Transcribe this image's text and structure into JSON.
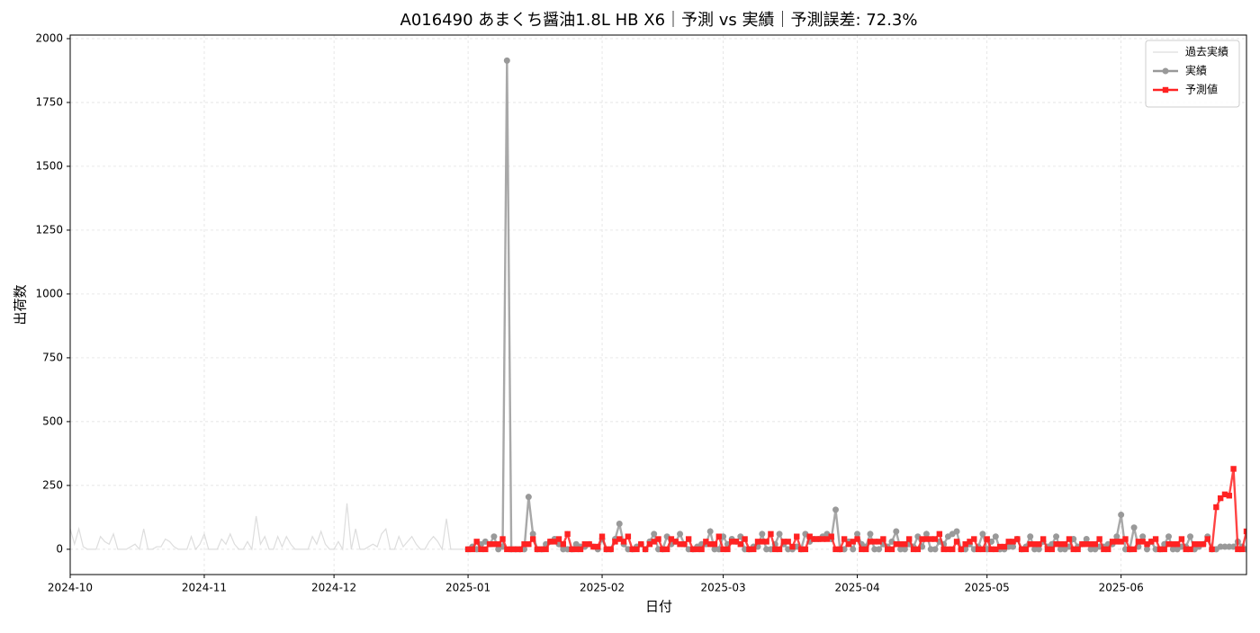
{
  "chart_data": {
    "type": "line",
    "title": "A016490 あまくち醤油1.8L HB X6｜予測 vs 実績｜予測誤差: 72.3%",
    "x_label": "日付",
    "y_label": "出荷数",
    "x": [
      "2024-10-01",
      "2024-10-02",
      "2024-10-03",
      "2024-10-04",
      "2024-10-05",
      "2024-10-06",
      "2024-10-07",
      "2024-10-08",
      "2024-10-09",
      "2024-10-10",
      "2024-10-11",
      "2024-10-12",
      "2024-10-13",
      "2024-10-14",
      "2024-10-15",
      "2024-10-16",
      "2024-10-17",
      "2024-10-18",
      "2024-10-19",
      "2024-10-20",
      "2024-10-21",
      "2024-10-22",
      "2024-10-23",
      "2024-10-24",
      "2024-10-25",
      "2024-10-26",
      "2024-10-27",
      "2024-10-28",
      "2024-10-29",
      "2024-10-30",
      "2024-10-31",
      "2024-11-01",
      "2024-11-02",
      "2024-11-03",
      "2024-11-04",
      "2024-11-05",
      "2024-11-06",
      "2024-11-07",
      "2024-11-08",
      "2024-11-09",
      "2024-11-10",
      "2024-11-11",
      "2024-11-12",
      "2024-11-13",
      "2024-11-14",
      "2024-11-15",
      "2024-11-16",
      "2024-11-17",
      "2024-11-18",
      "2024-11-19",
      "2024-11-20",
      "2024-11-21",
      "2024-11-22",
      "2024-11-23",
      "2024-11-24",
      "2024-11-25",
      "2024-11-26",
      "2024-11-27",
      "2024-11-28",
      "2024-11-29",
      "2024-11-30",
      "2024-12-01",
      "2024-12-02",
      "2024-12-03",
      "2024-12-04",
      "2024-12-05",
      "2024-12-06",
      "2024-12-07",
      "2024-12-08",
      "2024-12-09",
      "2024-12-10",
      "2024-12-11",
      "2024-12-12",
      "2024-12-13",
      "2024-12-14",
      "2024-12-15",
      "2024-12-16",
      "2024-12-17",
      "2024-12-18",
      "2024-12-19",
      "2024-12-20",
      "2024-12-21",
      "2024-12-22",
      "2024-12-23",
      "2024-12-24",
      "2024-12-25",
      "2024-12-26",
      "2024-12-27",
      "2024-12-28",
      "2024-12-29",
      "2024-12-30",
      "2024-12-31",
      "2025-01-01",
      "2025-01-02",
      "2025-01-03",
      "2025-01-04",
      "2025-01-05",
      "2025-01-06",
      "2025-01-07",
      "2025-01-08",
      "2025-01-09",
      "2025-01-10",
      "2025-01-11",
      "2025-01-12",
      "2025-01-13",
      "2025-01-14",
      "2025-01-15",
      "2025-01-16",
      "2025-01-17",
      "2025-01-18",
      "2025-01-19",
      "2025-01-20",
      "2025-01-21",
      "2025-01-22",
      "2025-01-23",
      "2025-01-24",
      "2025-01-25",
      "2025-01-26",
      "2025-01-27",
      "2025-01-28",
      "2025-01-29",
      "2025-01-30",
      "2025-01-31",
      "2025-02-01",
      "2025-02-02",
      "2025-02-03",
      "2025-02-04",
      "2025-02-05",
      "2025-02-06",
      "2025-02-07",
      "2025-02-08",
      "2025-02-09",
      "2025-02-10",
      "2025-02-11",
      "2025-02-12",
      "2025-02-13",
      "2025-02-14",
      "2025-02-15",
      "2025-02-16",
      "2025-02-17",
      "2025-02-18",
      "2025-02-19",
      "2025-02-20",
      "2025-02-21",
      "2025-02-22",
      "2025-02-23",
      "2025-02-24",
      "2025-02-25",
      "2025-02-26",
      "2025-02-27",
      "2025-02-28",
      "2025-03-01",
      "2025-03-02",
      "2025-03-03",
      "2025-03-04",
      "2025-03-05",
      "2025-03-06",
      "2025-03-07",
      "2025-03-08",
      "2025-03-09",
      "2025-03-10",
      "2025-03-11",
      "2025-03-12",
      "2025-03-13",
      "2025-03-14",
      "2025-03-15",
      "2025-03-16",
      "2025-03-17",
      "2025-03-18",
      "2025-03-19",
      "2025-03-20",
      "2025-03-21",
      "2025-03-22",
      "2025-03-23",
      "2025-03-24",
      "2025-03-25",
      "2025-03-26",
      "2025-03-27",
      "2025-03-28",
      "2025-03-29",
      "2025-03-30",
      "2025-03-31",
      "2025-04-01",
      "2025-04-02",
      "2025-04-03",
      "2025-04-04",
      "2025-04-05",
      "2025-04-06",
      "2025-04-07",
      "2025-04-08",
      "2025-04-09",
      "2025-04-10",
      "2025-04-11",
      "2025-04-12",
      "2025-04-13",
      "2025-04-14",
      "2025-04-15",
      "2025-04-16",
      "2025-04-17",
      "2025-04-18",
      "2025-04-19",
      "2025-04-20",
      "2025-04-21",
      "2025-04-22",
      "2025-04-23",
      "2025-04-24",
      "2025-04-25",
      "2025-04-26",
      "2025-04-27",
      "2025-04-28",
      "2025-04-29",
      "2025-04-30",
      "2025-05-01",
      "2025-05-02",
      "2025-05-03",
      "2025-05-04",
      "2025-05-05",
      "2025-05-06",
      "2025-05-07",
      "2025-05-08",
      "2025-05-09",
      "2025-05-10",
      "2025-05-11",
      "2025-05-12",
      "2025-05-13",
      "2025-05-14",
      "2025-05-15",
      "2025-05-16",
      "2025-05-17",
      "2025-05-18",
      "2025-05-19",
      "2025-05-20",
      "2025-05-21",
      "2025-05-22",
      "2025-05-23",
      "2025-05-24",
      "2025-05-25",
      "2025-05-26",
      "2025-05-27",
      "2025-05-28",
      "2025-05-29",
      "2025-05-30",
      "2025-05-31",
      "2025-06-01",
      "2025-06-02",
      "2025-06-03",
      "2025-06-04",
      "2025-06-05",
      "2025-06-06",
      "2025-06-07",
      "2025-06-08",
      "2025-06-09",
      "2025-06-10",
      "2025-06-11",
      "2025-06-12",
      "2025-06-13",
      "2025-06-14",
      "2025-06-15",
      "2025-06-16",
      "2025-06-17",
      "2025-06-18",
      "2025-06-19",
      "2025-06-20",
      "2025-06-21",
      "2025-06-22",
      "2025-06-23",
      "2025-06-24",
      "2025-06-25",
      "2025-06-26",
      "2025-06-27",
      "2025-06-28",
      "2025-06-29",
      "2025-06-30"
    ],
    "series": [
      {
        "name": "過去実績",
        "color": "#dddddd",
        "marker": "none",
        "values": [
          80,
          20,
          80,
          10,
          0,
          0,
          0,
          50,
          30,
          20,
          60,
          0,
          0,
          0,
          10,
          20,
          0,
          80,
          0,
          0,
          10,
          10,
          40,
          30,
          10,
          0,
          0,
          0,
          50,
          0,
          20,
          60,
          0,
          0,
          0,
          40,
          20,
          60,
          20,
          0,
          0,
          30,
          0,
          130,
          20,
          50,
          0,
          0,
          50,
          10,
          50,
          20,
          0,
          0,
          0,
          0,
          50,
          20,
          70,
          20,
          0,
          0,
          30,
          0,
          180,
          0,
          80,
          0,
          0,
          10,
          20,
          10,
          60,
          80,
          0,
          0,
          50,
          10,
          30,
          50,
          20,
          0,
          0,
          30,
          50,
          30,
          0,
          120,
          0,
          0,
          0,
          0,
          null,
          null,
          null,
          null,
          null,
          null,
          null,
          null,
          null,
          null,
          null,
          null,
          null,
          null,
          null,
          null,
          null,
          null,
          null,
          null,
          null,
          null,
          null,
          null,
          null,
          null,
          null,
          null,
          null,
          null,
          null,
          null,
          null,
          null,
          null,
          null,
          null,
          null,
          null,
          null,
          null,
          null,
          null,
          null,
          null,
          null,
          null,
          null,
          null,
          null,
          null,
          null,
          null,
          null,
          null,
          null,
          null,
          null,
          null,
          null,
          null,
          null,
          null,
          null,
          null,
          null,
          null,
          null,
          null,
          null,
          null,
          null,
          null,
          null,
          null,
          null,
          null,
          null,
          null,
          null,
          null,
          null,
          null,
          null,
          null,
          null,
          null,
          null,
          null,
          null,
          null,
          null,
          null,
          null,
          null,
          null,
          null,
          null,
          null,
          null,
          null,
          null,
          null,
          null,
          null,
          null,
          null,
          null,
          null,
          null,
          null,
          null,
          null,
          null,
          null,
          null,
          null,
          null,
          null,
          null,
          null,
          null,
          null,
          null,
          null,
          null,
          null,
          null,
          null,
          null,
          null,
          null,
          null,
          null,
          null,
          null,
          null,
          null,
          null,
          null,
          null,
          null,
          null,
          null,
          null,
          null,
          null,
          null,
          null,
          null,
          null,
          null,
          null,
          null,
          null,
          null,
          null,
          null,
          null,
          null,
          null,
          null,
          null,
          null,
          null,
          null,
          null,
          null,
          null,
          null,
          null,
          null,
          null,
          null,
          null,
          null,
          null,
          null,
          null,
          null,
          null
        ]
      },
      {
        "name": "実績",
        "color": "#999999",
        "marker": "circle",
        "values": [
          null,
          null,
          null,
          null,
          null,
          null,
          null,
          null,
          null,
          null,
          null,
          null,
          null,
          null,
          null,
          null,
          null,
          null,
          null,
          null,
          null,
          null,
          null,
          null,
          null,
          null,
          null,
          null,
          null,
          null,
          null,
          null,
          null,
          null,
          null,
          null,
          null,
          null,
          null,
          null,
          null,
          null,
          null,
          null,
          null,
          null,
          null,
          null,
          null,
          null,
          null,
          null,
          null,
          null,
          null,
          null,
          null,
          null,
          null,
          null,
          null,
          null,
          null,
          null,
          null,
          null,
          null,
          null,
          null,
          null,
          null,
          null,
          null,
          null,
          null,
          null,
          null,
          null,
          null,
          null,
          null,
          null,
          null,
          null,
          null,
          null,
          null,
          null,
          null,
          null,
          null,
          null,
          0,
          10,
          0,
          20,
          30,
          20,
          50,
          0,
          10,
          1914,
          0,
          0,
          0,
          0,
          205,
          60,
          0,
          0,
          20,
          30,
          40,
          20,
          0,
          0,
          0,
          20,
          10,
          10,
          20,
          10,
          0,
          40,
          0,
          0,
          40,
          100,
          20,
          0,
          0,
          10,
          20,
          0,
          30,
          60,
          0,
          0,
          50,
          20,
          30,
          60,
          20,
          0,
          0,
          10,
          20,
          20,
          70,
          0,
          0,
          50,
          20,
          40,
          30,
          50,
          0,
          0,
          10,
          10,
          60,
          0,
          0,
          20,
          60,
          20,
          0,
          0,
          10,
          0,
          60,
          30,
          40,
          40,
          50,
          60,
          40,
          155,
          0,
          0,
          30,
          0,
          60,
          20,
          10,
          60,
          0,
          0,
          20,
          10,
          30,
          70,
          0,
          0,
          20,
          10,
          50,
          10,
          60,
          0,
          0,
          30,
          20,
          50,
          60,
          70,
          0,
          0,
          20,
          0,
          10,
          60,
          0,
          30,
          50,
          0,
          0,
          10,
          10,
          40,
          0,
          10,
          50,
          0,
          0,
          30,
          10,
          20,
          50,
          0,
          0,
          10,
          40,
          10,
          20,
          40,
          0,
          0,
          10,
          10,
          20,
          20,
          50,
          135,
          0,
          0,
          85,
          10,
          50,
          0,
          30,
          0,
          0,
          20,
          50,
          0,
          0,
          10,
          10,
          50,
          0,
          10,
          20,
          50,
          0,
          0,
          10,
          10,
          10,
          10,
          30,
          10,
          0
        ]
      },
      {
        "name": "予測値",
        "color": "#ff2222",
        "marker": "square",
        "values": [
          null,
          null,
          null,
          null,
          null,
          null,
          null,
          null,
          null,
          null,
          null,
          null,
          null,
          null,
          null,
          null,
          null,
          null,
          null,
          null,
          null,
          null,
          null,
          null,
          null,
          null,
          null,
          null,
          null,
          null,
          null,
          null,
          null,
          null,
          null,
          null,
          null,
          null,
          null,
          null,
          null,
          null,
          null,
          null,
          null,
          null,
          null,
          null,
          null,
          null,
          null,
          null,
          null,
          null,
          null,
          null,
          null,
          null,
          null,
          null,
          null,
          null,
          null,
          null,
          null,
          null,
          null,
          null,
          null,
          null,
          null,
          null,
          null,
          null,
          null,
          null,
          null,
          null,
          null,
          null,
          null,
          null,
          null,
          null,
          null,
          null,
          null,
          null,
          null,
          null,
          null,
          null,
          0,
          0,
          30,
          0,
          0,
          20,
          20,
          20,
          40,
          0,
          0,
          0,
          0,
          20,
          20,
          40,
          0,
          0,
          0,
          30,
          30,
          40,
          20,
          60,
          0,
          0,
          0,
          20,
          20,
          10,
          10,
          50,
          0,
          0,
          30,
          40,
          30,
          50,
          0,
          0,
          20,
          0,
          20,
          30,
          40,
          0,
          0,
          40,
          30,
          20,
          20,
          40,
          0,
          0,
          0,
          30,
          20,
          20,
          50,
          0,
          0,
          30,
          30,
          20,
          40,
          0,
          0,
          30,
          30,
          30,
          60,
          0,
          0,
          30,
          30,
          10,
          50,
          0,
          0,
          50,
          40,
          40,
          40,
          40,
          50,
          0,
          0,
          40,
          20,
          30,
          40,
          0,
          0,
          30,
          30,
          30,
          40,
          0,
          0,
          20,
          20,
          20,
          40,
          0,
          0,
          40,
          40,
          40,
          40,
          60,
          0,
          0,
          0,
          30,
          0,
          20,
          30,
          40,
          0,
          0,
          40,
          0,
          0,
          10,
          10,
          30,
          30,
          40,
          0,
          0,
          20,
          20,
          20,
          40,
          0,
          0,
          20,
          20,
          20,
          40,
          0,
          0,
          20,
          20,
          20,
          20,
          40,
          0,
          0,
          30,
          30,
          30,
          40,
          0,
          0,
          30,
          30,
          20,
          30,
          40,
          0,
          0,
          20,
          20,
          20,
          40,
          0,
          0,
          20,
          20,
          20,
          40,
          0,
          165,
          200,
          215,
          210,
          315,
          0,
          0,
          70
        ]
      }
    ],
    "xlim": [
      "2024-10-01",
      "2025-06-30"
    ],
    "xticks": [
      {
        "value": "2024-10-01",
        "label": "2024-10"
      },
      {
        "value": "2024-11-01",
        "label": "2024-11"
      },
      {
        "value": "2024-12-01",
        "label": "2024-12"
      },
      {
        "value": "2025-01-01",
        "label": "2025-01"
      },
      {
        "value": "2025-02-01",
        "label": "2025-02"
      },
      {
        "value": "2025-03-01",
        "label": "2025-03"
      },
      {
        "value": "2025-04-01",
        "label": "2025-04"
      },
      {
        "value": "2025-05-01",
        "label": "2025-05"
      },
      {
        "value": "2025-06-01",
        "label": "2025-06"
      }
    ],
    "ylim": [
      -99,
      2014
    ],
    "yticks": [
      0,
      250,
      500,
      750,
      1000,
      1250,
      1500,
      1750,
      2000
    ],
    "grid": true,
    "legend": "upper right"
  }
}
